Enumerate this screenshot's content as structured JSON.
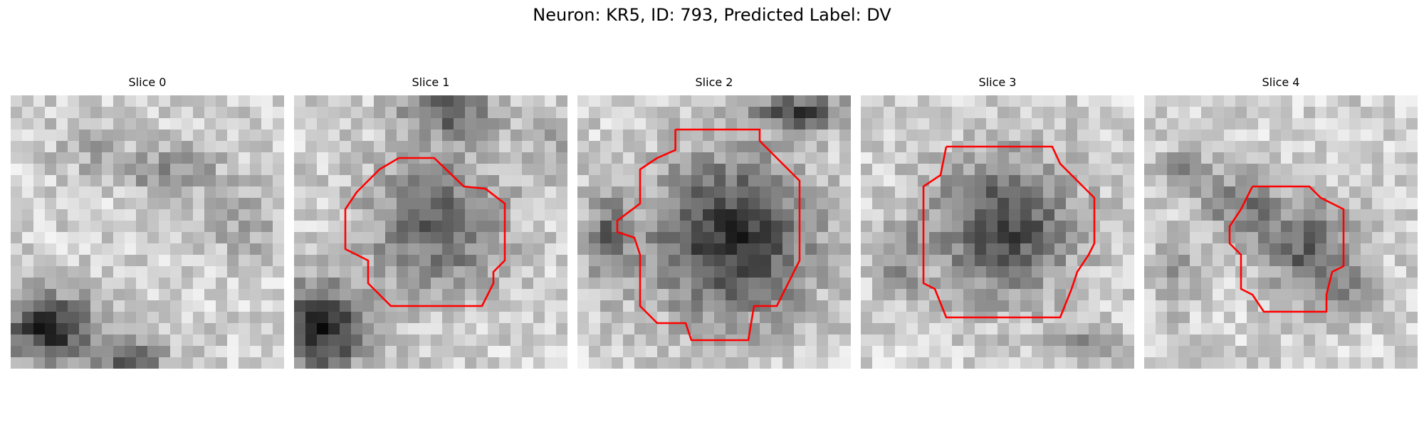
{
  "figure": {
    "title": "Neuron: KR5, ID: 793, Predicted Label: DV"
  },
  "colors": {
    "contour": "#ff0000",
    "background": "#ffffff",
    "text": "#000000"
  },
  "slices": [
    {
      "label": "Slice 0",
      "has_contour": false
    },
    {
      "label": "Slice 1",
      "has_contour": true
    },
    {
      "label": "Slice 2",
      "has_contour": true
    },
    {
      "label": "Slice 3",
      "has_contour": true
    },
    {
      "label": "Slice 4",
      "has_contour": true
    }
  ]
}
